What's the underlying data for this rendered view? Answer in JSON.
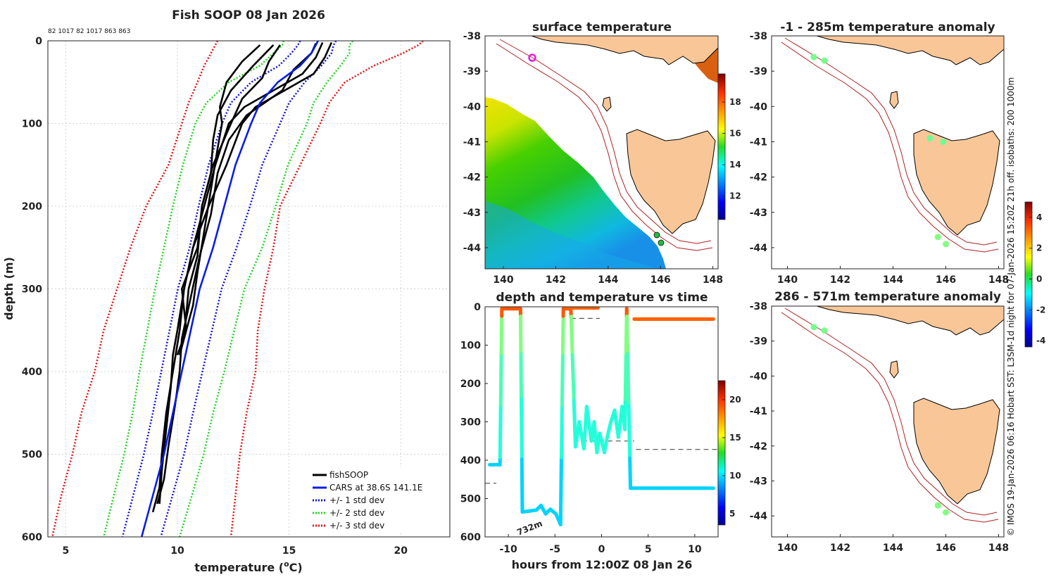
{
  "page": {
    "side_credit": "© IMOS 19-Jan-2026 06:16 Hobart SST: L3SM-1d night for 07-Jan-2026 15:20Z 21h off. isobaths: 200  1000m"
  },
  "chart_data": [
    {
      "id": "profile",
      "type": "line",
      "title": "Fish SOOP 08 Jan 2026",
      "subtitle": "82 1017 82 1017 863 863",
      "xlabel": "temperature (°C)",
      "xlabel_main": "temperature (",
      "xlabel_sup": "o",
      "xlabel_tail": "C)",
      "ylabel": "depth (m)",
      "xlim": [
        4.2,
        22.2
      ],
      "ylim": [
        0,
        600
      ],
      "x_ticks": [
        5,
        10,
        15,
        20
      ],
      "y_ticks": [
        0,
        100,
        200,
        300,
        400,
        500,
        600
      ],
      "grid": true,
      "legend_position": "bottom-right",
      "legend": [
        "fishSOOP",
        "CARS at 38.6S 141.1E",
        "+/- 1 std dev",
        "+/- 2 std dev",
        "+/- 3 std dev"
      ],
      "colors": {
        "fish": "#000000",
        "cars": "#0a1de6",
        "sd1": "#1010e0",
        "sd2": "#22d422",
        "sd3": "#e51010"
      },
      "depths": [
        0,
        5,
        15,
        30,
        50,
        75,
        100,
        150,
        200,
        250,
        300,
        350,
        400,
        450,
        500,
        550,
        600
      ],
      "cars": [
        16.3,
        16.2,
        16.0,
        15.5,
        14.5,
        13.7,
        13.3,
        12.6,
        12.1,
        11.6,
        11.0,
        10.6,
        10.2,
        9.8,
        9.4,
        8.9,
        8.4
      ],
      "std_dev": [
        [
          0.8,
          0.8,
          0.9,
          0.95,
          1.2,
          1.3,
          1.3,
          1.2,
          1.15,
          1.05,
          0.98,
          0.95,
          0.92,
          0.9,
          0.9,
          0.88,
          0.86
        ],
        [
          1.55,
          1.5,
          1.7,
          1.8,
          2.2,
          2.4,
          2.5,
          2.35,
          2.3,
          2.2,
          2.0,
          1.95,
          1.9,
          1.8,
          1.78,
          1.75,
          1.7
        ]
      ],
      "sd3_upper": [
        21.0,
        20.8,
        20.1,
        18.8,
        17.5,
        16.8,
        16.4,
        15.5,
        14.6,
        14.3,
        13.9,
        13.6,
        13.5,
        13.1,
        12.8,
        12.6,
        12.4
      ],
      "sd3_lower": [
        11.8,
        11.7,
        11.5,
        11.2,
        10.9,
        10.5,
        10.2,
        9.6,
        8.6,
        7.9,
        7.3,
        6.7,
        6.3,
        5.7,
        5.3,
        4.8,
        4.4
      ],
      "fish_profiles": [
        {
          "d": [
            2,
            20,
            40,
            60,
            80,
            100,
            150,
            200,
            250,
            300,
            350,
            380,
            420,
            470,
            520,
            560
          ],
          "t": [
            16.9,
            16.6,
            16.1,
            14.8,
            13.5,
            12.9,
            12.2,
            11.4,
            10.7,
            10.3,
            10.0,
            9.8,
            9.7,
            9.5,
            9.3,
            9.2
          ]
        },
        {
          "d": [
            2,
            20,
            40,
            60,
            80,
            100,
            150,
            200,
            250,
            300,
            350,
            400,
            450,
            500,
            540,
            570
          ],
          "t": [
            16.5,
            16.2,
            15.6,
            14.3,
            13.0,
            12.3,
            11.7,
            11.2,
            10.7,
            10.3,
            10.1,
            9.8,
            9.5,
            9.3,
            9.2,
            8.9
          ]
        },
        {
          "d": [
            5,
            25,
            45,
            70,
            100,
            150,
            200,
            250,
            300,
            350,
            380
          ],
          "t": [
            14.6,
            14.1,
            13.8,
            12.9,
            12.4,
            11.6,
            11.1,
            10.9,
            10.2,
            10.4,
            10.0
          ]
        },
        {
          "d": [
            5,
            25,
            50,
            80,
            100,
            130,
            180,
            230,
            280,
            320,
            360,
            380
          ],
          "t": [
            13.7,
            12.9,
            12.2,
            11.9,
            12.0,
            11.8,
            11.5,
            11.2,
            10.9,
            10.7,
            10.3,
            10.1
          ]
        },
        {
          "d": [
            5,
            30,
            60,
            90,
            120,
            160,
            200,
            260,
            300,
            360
          ],
          "t": [
            14.3,
            13.4,
            12.4,
            11.8,
            11.6,
            11.5,
            11.1,
            10.9,
            10.5,
            10.3
          ]
        },
        {
          "d": [
            3,
            15,
            35,
            60,
            90,
            120,
            160,
            210,
            260,
            310,
            360,
            400,
            440,
            490,
            530,
            560
          ],
          "t": [
            16.2,
            16.0,
            15.2,
            14.7,
            13.1,
            12.3,
            11.8,
            11.5,
            11.0,
            10.6,
            10.2,
            10.1,
            9.9,
            9.6,
            9.4,
            9.1
          ]
        }
      ]
    },
    {
      "id": "sst-map",
      "type": "heatmap",
      "title": "surface temperature",
      "xlim": [
        139.3,
        148.2
      ],
      "ylim": [
        -44.6,
        -38
      ],
      "x_ticks": [
        140,
        142,
        144,
        146,
        148
      ],
      "y_ticks": [
        -38,
        -39,
        -40,
        -41,
        -42,
        -43,
        -44
      ],
      "colorbar_ticks": [
        12,
        14,
        16,
        18
      ],
      "colorbar_range": [
        10.5,
        19.8
      ],
      "markers": [
        {
          "lon": 141.1,
          "lat": -38.6,
          "kind": "ring",
          "color": "#e020e0"
        },
        {
          "lon": 145.8,
          "lat": -43.7,
          "kind": "dot",
          "color": "#22bb44"
        },
        {
          "lon": 145.9,
          "lat": -43.9,
          "kind": "dot",
          "color": "#22bb44"
        }
      ]
    },
    {
      "id": "depth-time",
      "type": "scatter",
      "title": "depth and temperature vs time",
      "xlabel": "hours from 12:00Z 08 Jan 26",
      "xlim": [
        -12.5,
        12.5
      ],
      "ylim": [
        0,
        600
      ],
      "x_ticks": [
        -10,
        -5,
        0,
        5,
        10
      ],
      "y_ticks": [
        0,
        100,
        200,
        300,
        400,
        500,
        600
      ],
      "colorbar_ticks": [
        5,
        10,
        15,
        20
      ],
      "colorbar_range": [
        3.5,
        22.5
      ],
      "annotation": "732m",
      "dashed_segments": [
        {
          "x": [
            -12.5,
            -11.3
          ],
          "depth": 460
        },
        {
          "x": [
            -3.3,
            -0.2
          ],
          "depth": 30
        },
        {
          "x": [
            -3.0,
            3.5
          ],
          "depth": 350
        },
        {
          "x": [
            3.7,
            12.5
          ],
          "depth": 372
        },
        {
          "x": [
            4.2,
            12.0
          ],
          "depth": 33
        }
      ],
      "track": [
        [
          -12.0,
          412
        ],
        [
          -10.9,
          412
        ],
        [
          -10.7,
          5
        ],
        [
          -8.7,
          5
        ],
        [
          -8.5,
          535
        ],
        [
          -7.0,
          530
        ],
        [
          -6.5,
          518
        ],
        [
          -6.0,
          540
        ],
        [
          -5.5,
          528
        ],
        [
          -4.9,
          540
        ],
        [
          -4.4,
          568
        ],
        [
          -4.1,
          5
        ],
        [
          -3.6,
          5
        ],
        [
          -3.3,
          5
        ],
        [
          -2.8,
          365
        ],
        [
          -2.4,
          300
        ],
        [
          -1.9,
          370
        ],
        [
          -1.6,
          260
        ],
        [
          -1.1,
          350
        ],
        [
          -0.8,
          300
        ],
        [
          -0.5,
          380
        ],
        [
          -0.2,
          330
        ],
        [
          0.3,
          380
        ],
        [
          0.6,
          340
        ],
        [
          1.0,
          300
        ],
        [
          1.4,
          270
        ],
        [
          1.8,
          340
        ],
        [
          2.2,
          260
        ],
        [
          2.5,
          320
        ],
        [
          2.7,
          5
        ],
        [
          3.1,
          473
        ],
        [
          6.5,
          473
        ],
        [
          9.5,
          473
        ],
        [
          12.0,
          473
        ]
      ],
      "surface_segments": [
        {
          "x": [
            -3.7,
            -0.4
          ],
          "depth": 3
        },
        {
          "x": [
            3.5,
            12.0
          ],
          "depth": 32
        }
      ]
    },
    {
      "id": "anomaly-1",
      "type": "scatter",
      "title": "-1 - 285m temperature anomaly",
      "xlim": [
        139.4,
        148.2
      ],
      "ylim": [
        -44.6,
        -38
      ],
      "x_ticks": [
        140,
        142,
        144,
        146,
        148
      ],
      "y_ticks": [
        -38,
        -39,
        -40,
        -41,
        -42,
        -43,
        -44
      ],
      "colorbar_ticks": [
        -4,
        -2,
        0,
        2,
        4
      ],
      "colorbar_range": [
        -4.4,
        5.0
      ],
      "markers": [
        {
          "lon": 141.0,
          "lat": -38.6,
          "anomaly": 0.2
        },
        {
          "lon": 141.4,
          "lat": -38.7,
          "anomaly": 0.2
        },
        {
          "lon": 145.4,
          "lat": -40.9,
          "anomaly": 0.1
        },
        {
          "lon": 145.9,
          "lat": -41.0,
          "anomaly": 0.1
        },
        {
          "lon": 145.7,
          "lat": -43.7,
          "anomaly": 0.3
        },
        {
          "lon": 146.0,
          "lat": -43.9,
          "anomaly": 0.3
        }
      ]
    },
    {
      "id": "anomaly-2",
      "type": "scatter",
      "title": "286 - 571m temperature anomaly",
      "xlim": [
        139.4,
        148.2
      ],
      "ylim": [
        -44.6,
        -38
      ],
      "x_ticks": [
        140,
        142,
        144,
        146,
        148
      ],
      "y_ticks": [
        -38,
        -39,
        -40,
        -41,
        -42,
        -43,
        -44
      ],
      "markers": [
        {
          "lon": 141.0,
          "lat": -38.6,
          "anomaly": 0.2
        },
        {
          "lon": 141.4,
          "lat": -38.7,
          "anomaly": 0.2
        },
        {
          "lon": 145.7,
          "lat": -43.7,
          "anomaly": 0.3
        },
        {
          "lon": 146.0,
          "lat": -43.9,
          "anomaly": 0.3
        }
      ]
    }
  ]
}
